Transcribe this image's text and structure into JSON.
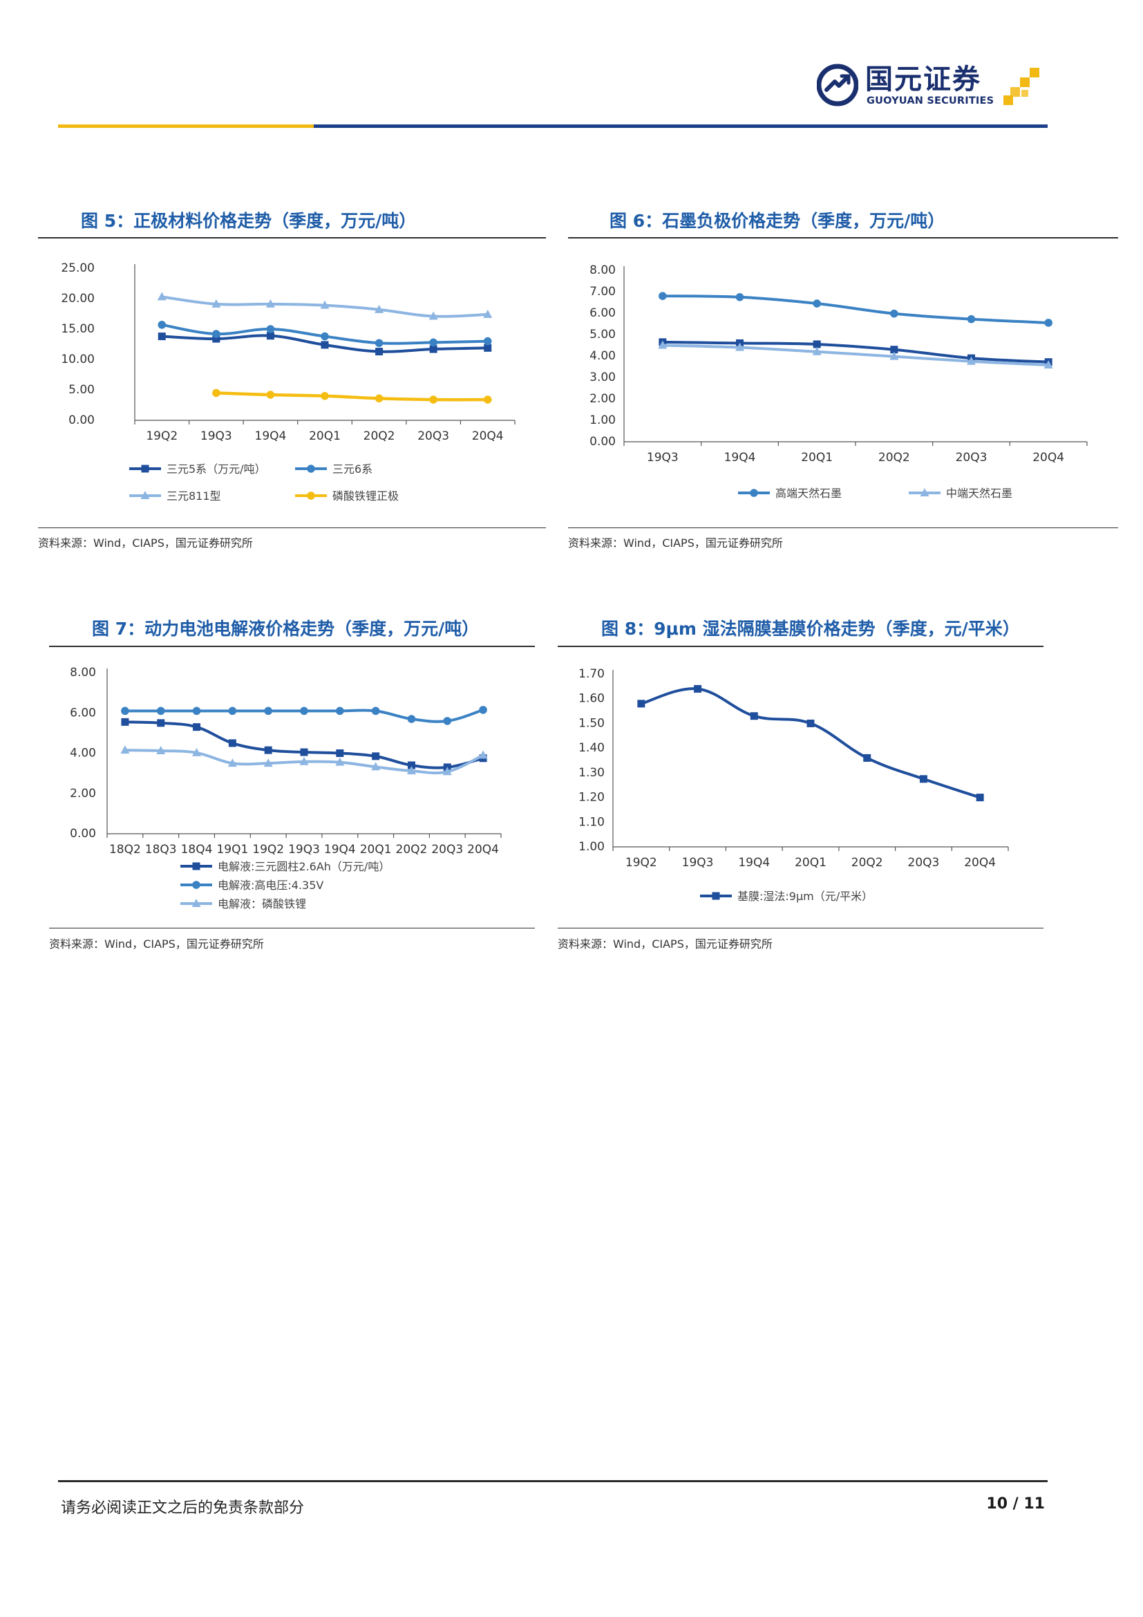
{
  "header": {
    "logo_cn": "国元证券",
    "logo_en": "GUOYUAN SECURITIES",
    "brand_blue": "#1a2f6e",
    "brand_gold": "#f2b915"
  },
  "figures": {
    "fig5": {
      "title": "图 5：正极材料价格走势（季度，万元/吨）",
      "source": "资料来源：Wind，CIAPS，国元证券研究所"
    },
    "fig6": {
      "title": "图 6：石墨负极价格走势（季度，万元/吨）",
      "source": "资料来源：Wind，CIAPS，国元证券研究所"
    },
    "fig7": {
      "title": "图 7：动力电池电解液价格走势（季度，万元/吨）",
      "source": "资料来源：Wind，CIAPS，国元证券研究所"
    },
    "fig8": {
      "title": "图 8：9μm 湿法隔膜基膜价格走势（季度，元/平米）",
      "source": "资料来源：Wind，CIAPS，国元证券研究所"
    }
  },
  "chart_data": [
    {
      "id": "fig5",
      "type": "line",
      "categories": [
        "19Q2",
        "19Q3",
        "19Q4",
        "20Q1",
        "20Q2",
        "20Q3",
        "20Q4"
      ],
      "ylim": [
        0,
        25
      ],
      "yticks": [
        0,
        5,
        10,
        15,
        20,
        25
      ],
      "ytick_labels": [
        "0.00",
        "5.00",
        "10.00",
        "15.00",
        "20.00",
        "25.00"
      ],
      "legend_position": "bottom",
      "series": [
        {
          "name": "三元5系（万元/吨）",
          "color": "#1f4e9c",
          "marker": "square",
          "values": [
            13.8,
            13.4,
            13.9,
            12.4,
            11.3,
            11.7,
            11.9
          ]
        },
        {
          "name": "三元6系",
          "color": "#3b82c4",
          "marker": "circle",
          "values": [
            15.7,
            14.2,
            15.0,
            13.8,
            12.7,
            12.8,
            13.0
          ]
        },
        {
          "name": "三元811型",
          "color": "#8db5e2",
          "marker": "triangle",
          "values": [
            20.3,
            19.1,
            19.1,
            18.9,
            18.2,
            17.1,
            17.4
          ]
        },
        {
          "name": "磷酸铁锂正极",
          "color": "#f5bd12",
          "marker": "circle",
          "values": [
            null,
            4.5,
            4.2,
            4.0,
            3.6,
            3.4,
            3.4
          ]
        }
      ]
    },
    {
      "id": "fig6",
      "type": "line",
      "categories": [
        "19Q3",
        "19Q4",
        "20Q1",
        "20Q2",
        "20Q3",
        "20Q4"
      ],
      "ylim": [
        0,
        8
      ],
      "yticks": [
        0,
        1,
        2,
        3,
        4,
        5,
        6,
        7,
        8
      ],
      "ytick_labels": [
        "0.00",
        "1.00",
        "2.00",
        "3.00",
        "4.00",
        "5.00",
        "6.00",
        "7.00",
        "8.00"
      ],
      "legend_position": "bottom",
      "series": [
        {
          "name": "",
          "color": "#1f4e9c",
          "marker": "square",
          "values": [
            4.65,
            4.6,
            4.55,
            4.3,
            3.9,
            3.72
          ]
        },
        {
          "name": "高端天然石墨",
          "color": "#3b82c4",
          "marker": "circle",
          "values": [
            6.8,
            6.75,
            6.45,
            5.98,
            5.72,
            5.55
          ]
        },
        {
          "name": "中端天然石墨",
          "color": "#8db5e2",
          "marker": "triangle",
          "values": [
            4.5,
            4.4,
            4.2,
            3.98,
            3.75,
            3.58
          ]
        }
      ]
    },
    {
      "id": "fig7",
      "type": "line",
      "categories": [
        "18Q2",
        "18Q3",
        "18Q4",
        "19Q1",
        "19Q2",
        "19Q3",
        "19Q4",
        "20Q1",
        "20Q2",
        "20Q3",
        "20Q4"
      ],
      "ylim": [
        0,
        8
      ],
      "yticks": [
        0,
        2,
        4,
        6,
        8
      ],
      "ytick_labels": [
        "0.00",
        "2.00",
        "4.00",
        "6.00",
        "8.00"
      ],
      "legend_position": "bottom",
      "series": [
        {
          "name": "电解液:三元圆柱2.6Ah（万元/吨）",
          "color": "#1f4e9c",
          "marker": "square",
          "values": [
            5.55,
            5.5,
            5.3,
            4.5,
            4.15,
            4.05,
            4.0,
            3.85,
            3.4,
            3.3,
            3.75
          ]
        },
        {
          "name": "电解液:高电压:4.35V",
          "color": "#3b82c4",
          "marker": "circle",
          "values": [
            6.1,
            6.1,
            6.1,
            6.1,
            6.1,
            6.1,
            6.1,
            6.1,
            5.7,
            5.6,
            6.15
          ]
        },
        {
          "name": "电解液：磷酸铁锂",
          "color": "#8db5e2",
          "marker": "triangle",
          "values": [
            4.15,
            4.12,
            4.02,
            3.5,
            3.5,
            3.58,
            3.55,
            3.32,
            3.12,
            3.08,
            3.9
          ]
        }
      ]
    },
    {
      "id": "fig8",
      "type": "line",
      "categories": [
        "19Q2",
        "19Q3",
        "19Q4",
        "20Q1",
        "20Q2",
        "20Q3",
        "20Q4"
      ],
      "ylim": [
        1.0,
        1.7
      ],
      "yticks": [
        1.0,
        1.1,
        1.2,
        1.3,
        1.4,
        1.5,
        1.6,
        1.7
      ],
      "ytick_labels": [
        "1.00",
        "1.10",
        "1.20",
        "1.30",
        "1.40",
        "1.50",
        "1.60",
        "1.70"
      ],
      "legend_position": "bottom",
      "series": [
        {
          "name": "基膜:湿法:9μm（元/平米）",
          "color": "#1f4e9c",
          "marker": "square",
          "values": [
            1.58,
            1.64,
            1.53,
            1.5,
            1.36,
            1.275,
            1.2
          ]
        }
      ]
    }
  ],
  "footer": {
    "disclaimer": "请务必阅读正文之后的免责条款部分",
    "page": "10 / 11"
  }
}
